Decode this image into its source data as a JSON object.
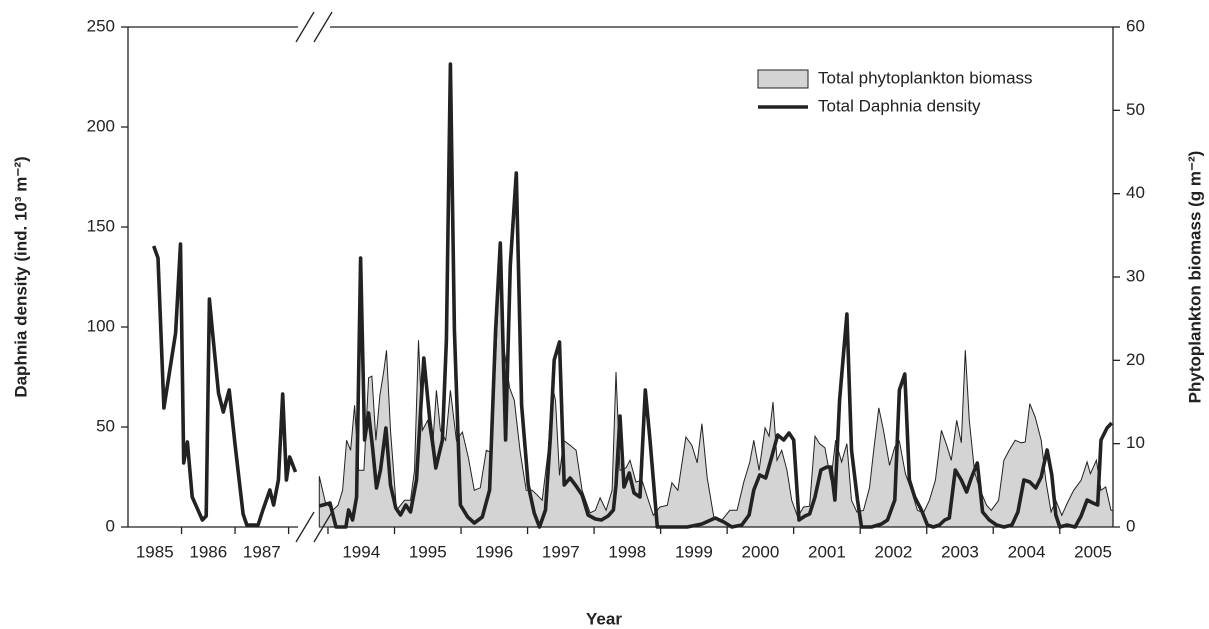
{
  "chart_data": {
    "type": "line",
    "x_label": "Year",
    "y_label": "Daphnia density (ind. 10³ m⁻²)",
    "y2_label": "Phytoplankton biomass (g m⁻²)",
    "xlim": [
      1985,
      2005.8
    ],
    "axis_break": [
      1988.4,
      1993.85
    ],
    "ylim": [
      0,
      250
    ],
    "yticks": [
      0,
      50,
      100,
      150,
      200,
      250
    ],
    "y2lim": [
      0,
      60
    ],
    "y2ticks": [
      0,
      10,
      20,
      30,
      40,
      50,
      60
    ],
    "xticks": [
      {
        "value": 1985.5,
        "label": "1985"
      },
      {
        "value": 1986.5,
        "label": "1986"
      },
      {
        "value": 1987.5,
        "label": "1987"
      },
      {
        "value": 1994.5,
        "label": "1994"
      },
      {
        "value": 1995.5,
        "label": "1995"
      },
      {
        "value": 1996.5,
        "label": "1996"
      },
      {
        "value": 1997.5,
        "label": "1997"
      },
      {
        "value": 1998.5,
        "label": "1998"
      },
      {
        "value": 1999.5,
        "label": "1999"
      },
      {
        "value": 2000.5,
        "label": "2000"
      },
      {
        "value": 2001.5,
        "label": "2001"
      },
      {
        "value": 2002.5,
        "label": "2002"
      },
      {
        "value": 2003.5,
        "label": "2003"
      },
      {
        "value": 2004.5,
        "label": "2004"
      },
      {
        "value": 2005.5,
        "label": "2005"
      }
    ],
    "xminor_ticks": [
      1986,
      1987,
      1988,
      1994,
      1995,
      1996,
      1997,
      1998,
      1999,
      2000,
      2001,
      2002,
      2003,
      2004,
      2005
    ],
    "legend": "top-right",
    "series": [
      {
        "name": "Total phytoplankton biomass",
        "type": "area",
        "axis": "y2",
        "color": "#d4d4d4",
        "edge_color": "#222",
        "x": [
          1993.87,
          1993.96,
          1994.07,
          1994.15,
          1994.22,
          1994.28,
          1994.34,
          1994.4,
          1994.46,
          1994.54,
          1994.61,
          1994.66,
          1994.72,
          1994.78,
          1994.84,
          1994.88,
          1994.94,
          1995.03,
          1995.15,
          1995.24,
          1995.3,
          1995.36,
          1995.42,
          1995.5,
          1995.57,
          1995.63,
          1995.69,
          1995.77,
          1995.84,
          1995.93,
          1996.02,
          1996.11,
          1996.2,
          1996.29,
          1996.38,
          1996.44,
          1996.52,
          1996.58,
          1996.65,
          1996.73,
          1996.8,
          1996.89,
          1996.98,
          1997.07,
          1997.15,
          1997.22,
          1997.31,
          1997.37,
          1997.42,
          1997.48,
          1997.54,
          1997.64,
          1997.73,
          1997.82,
          1997.94,
          1998.02,
          1998.09,
          1998.18,
          1998.27,
          1998.33,
          1998.39,
          1998.48,
          1998.54,
          1998.63,
          1998.72,
          1998.8,
          1998.89,
          1998.99,
          1999.1,
          1999.17,
          1999.26,
          1999.38,
          1999.47,
          1999.55,
          1999.62,
          1999.7,
          1999.8,
          1999.92,
          2000.04,
          2000.15,
          2000.25,
          2000.34,
          2000.4,
          2000.48,
          2000.57,
          2000.63,
          2000.69,
          2000.75,
          2000.82,
          2000.9,
          2000.97,
          2001.06,
          2001.15,
          2001.24,
          2001.32,
          2001.39,
          2001.47,
          2001.56,
          2001.63,
          2001.72,
          2001.8,
          2001.87,
          2001.95,
          2002.05,
          2002.14,
          2002.2,
          2002.28,
          2002.35,
          2002.44,
          2002.52,
          2002.59,
          2002.68,
          2002.77,
          2002.86,
          2002.95,
          2003.04,
          2003.13,
          2003.22,
          2003.3,
          2003.37,
          2003.45,
          2003.52,
          2003.58,
          2003.64,
          2003.72,
          2003.79,
          2003.9,
          2003.97,
          2004.08,
          2004.16,
          2004.24,
          2004.33,
          2004.42,
          2004.48,
          2004.55,
          2004.63,
          2004.72,
          2004.79,
          2004.87,
          2004.94,
          2005.03,
          2005.12,
          2005.21,
          2005.32,
          2005.41,
          2005.46,
          2005.55,
          2005.62,
          2005.69,
          2005.77,
          2005.8
        ],
        "values": [
          6.1,
          3,
          2,
          2.6,
          4.4,
          10.4,
          9.2,
          14.6,
          6.8,
          6.8,
          17.9,
          18.1,
          10.4,
          15.8,
          18.8,
          21.2,
          11.6,
          2,
          3.2,
          3.2,
          6.8,
          22.4,
          11.6,
          12.8,
          9.2,
          16.4,
          11.6,
          10.4,
          16.4,
          10.4,
          11.4,
          8.3,
          4.4,
          4.7,
          9.2,
          9,
          20,
          30.9,
          21.2,
          16.7,
          15.2,
          9,
          4.4,
          4.4,
          3.8,
          3.2,
          9.2,
          17,
          15.2,
          6.2,
          10.4,
          9.8,
          9.2,
          4.4,
          1.7,
          2,
          3.5,
          2,
          4.4,
          18.6,
          6.8,
          7.1,
          8,
          5.4,
          5.6,
          3.6,
          1.4,
          2.4,
          2.6,
          5.3,
          4.4,
          10.8,
          9.8,
          7.7,
          12.4,
          5.9,
          1.2,
          0.8,
          2,
          2,
          5.4,
          7.8,
          10.4,
          6.8,
          11.9,
          10.9,
          15,
          8,
          9.2,
          6.8,
          3.2,
          1.2,
          2.4,
          2.5,
          10.9,
          10,
          9.5,
          5.6,
          10.4,
          7.8,
          10,
          3.2,
          1.8,
          2,
          4.7,
          9,
          14.3,
          11.6,
          7.4,
          9.6,
          10.3,
          6.4,
          4.4,
          2,
          1.7,
          3.2,
          5.6,
          11.6,
          9.8,
          8,
          12.8,
          10.1,
          21.2,
          12.8,
          6.6,
          4.7,
          2.6,
          2,
          3.2,
          8,
          9.2,
          10.4,
          10.1,
          10.2,
          14.8,
          13.2,
          10.4,
          5.6,
          1.8,
          3.2,
          1.4,
          3,
          4.4,
          5.6,
          7.8,
          6.4,
          8,
          4.4,
          4.8,
          2,
          2
        ]
      },
      {
        "name": "Total Daphnia density",
        "type": "line",
        "axis": "y",
        "color": "#222",
        "x": [
          1985.48,
          1985.56,
          1985.67,
          1985.89,
          1985.98,
          1986.04,
          1986.11,
          1986.2,
          1986.39,
          1986.46,
          1986.52,
          1986.59,
          1986.69,
          1986.78,
          1986.89,
          1987.0,
          1987.15,
          1987.22,
          1987.43,
          1987.52,
          1987.65,
          1987.72,
          1987.81,
          1987.89,
          1987.96,
          1988.02,
          1988.13,
          1993.87,
          1994.03,
          1994.12,
          1994.27,
          1994.31,
          1994.37,
          1994.43,
          1994.49,
          1994.55,
          1994.61,
          1994.67,
          1994.73,
          1994.79,
          1994.87,
          1994.94,
          1995.02,
          1995.09,
          1995.17,
          1995.24,
          1995.33,
          1995.44,
          1995.53,
          1995.62,
          1995.72,
          1995.78,
          1995.84,
          1995.9,
          1995.99,
          1996.1,
          1996.2,
          1996.32,
          1996.43,
          1996.52,
          1996.59,
          1996.67,
          1996.74,
          1996.83,
          1996.91,
          1997.01,
          1997.1,
          1997.18,
          1997.27,
          1997.34,
          1997.4,
          1997.48,
          1997.55,
          1997.64,
          1997.73,
          1997.82,
          1997.91,
          1998.02,
          1998.11,
          1998.21,
          1998.29,
          1998.33,
          1998.39,
          1998.45,
          1998.53,
          1998.6,
          1998.69,
          1998.77,
          1998.84,
          1998.95,
          1999.4,
          1999.62,
          1999.82,
          1999.95,
          2000.07,
          2000.22,
          2000.33,
          2000.4,
          2000.49,
          2000.58,
          2000.67,
          2000.76,
          2000.85,
          2000.93,
          2001.0,
          2001.08,
          2001.17,
          2001.24,
          2001.32,
          2001.41,
          2001.5,
          2001.56,
          2001.62,
          2001.69,
          2001.8,
          2001.87,
          2001.96,
          2002.02,
          2002.17,
          2002.32,
          2002.41,
          2002.52,
          2002.59,
          2002.67,
          2002.74,
          2002.82,
          2002.92,
          2003.01,
          2003.1,
          2003.19,
          2003.27,
          2003.34,
          2003.43,
          2003.52,
          2003.6,
          2003.67,
          2003.76,
          2003.84,
          2003.94,
          2004.05,
          2004.16,
          2004.28,
          2004.37,
          2004.46,
          2004.55,
          2004.64,
          2004.72,
          2004.81,
          2004.88,
          2004.94,
          2005.0,
          2005.11,
          2005.23,
          2005.32,
          2005.41,
          2005.5,
          2005.57,
          2005.62,
          2005.71,
          2005.78
        ],
        "values": [
          140.5,
          134.5,
          59.5,
          97,
          141.5,
          32,
          42.5,
          15,
          3.5,
          5.5,
          114,
          94.5,
          67,
          57.5,
          68.5,
          41,
          6.5,
          1,
          1,
          8.5,
          18.5,
          11,
          23.5,
          66.5,
          23.5,
          35,
          27.5,
          10.5,
          12,
          0,
          0,
          8.5,
          3.5,
          15,
          134.5,
          43.5,
          57,
          39.5,
          19.5,
          28.5,
          49.5,
          21,
          9.5,
          6,
          11,
          7.5,
          23.5,
          84.5,
          53.5,
          29.5,
          43.5,
          93.5,
          231.5,
          98.5,
          11,
          5,
          2,
          5,
          18.5,
          98.5,
          142,
          43.5,
          131,
          177,
          61,
          21,
          7,
          0,
          8.5,
          43.5,
          83.5,
          92.5,
          21,
          24.5,
          20.5,
          16,
          6,
          4,
          3.5,
          5.5,
          8.5,
          21,
          55.5,
          20,
          27,
          17,
          15,
          68.5,
          43.5,
          0,
          0,
          1.5,
          4.5,
          2.5,
          0,
          1,
          6,
          18.5,
          26,
          24.5,
          35,
          46,
          43.5,
          47,
          43.5,
          3.5,
          5.5,
          6.5,
          15,
          28.5,
          30,
          30,
          13.5,
          63.5,
          106.5,
          38.5,
          13.5,
          0,
          0,
          1.5,
          3.5,
          13.5,
          68.5,
          76.5,
          23.5,
          15,
          8.5,
          1,
          0,
          1,
          3.5,
          4.5,
          28.5,
          23.5,
          17.5,
          24.5,
          32,
          7.5,
          3.5,
          1,
          0,
          1,
          7.5,
          23.5,
          22.5,
          19.5,
          25,
          38.5,
          26,
          6,
          0,
          1,
          0,
          5.5,
          13.5,
          12,
          11,
          43.5,
          49.5,
          52
        ]
      }
    ]
  }
}
